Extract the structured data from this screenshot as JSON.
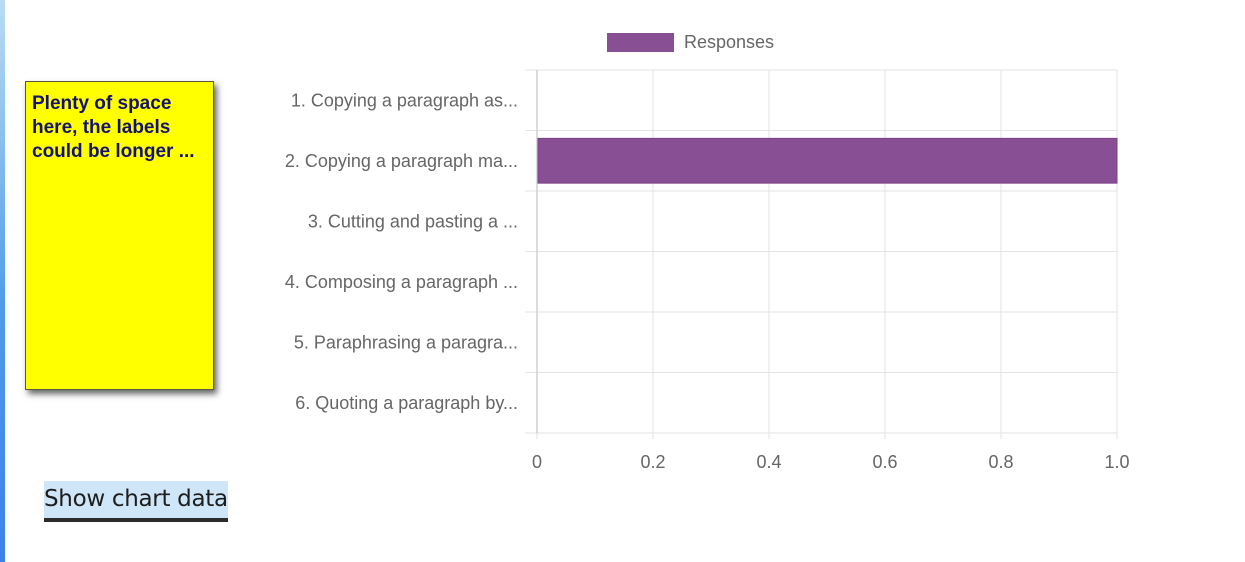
{
  "note": {
    "text": "Plenty of space here, the labels could be longer ..."
  },
  "show_data_button": {
    "label": "Show chart data"
  },
  "chart_data": {
    "type": "bar",
    "orientation": "horizontal",
    "categories": [
      "1. Copying a paragraph as...",
      "2. Copying a paragraph ma...",
      "3. Cutting and pasting a ...",
      "4. Composing a paragraph ...",
      "5. Paraphrasing a paragra...",
      "6. Quoting a paragraph by..."
    ],
    "series": [
      {
        "name": "Responses",
        "values": [
          0,
          1,
          0,
          0,
          0,
          0
        ],
        "color": "#884f94"
      }
    ],
    "xlim": [
      0,
      1
    ],
    "x_ticks": [
      0,
      0.2,
      0.4,
      0.6,
      0.8,
      1.0
    ],
    "x_tick_labels": [
      "0",
      "0.2",
      "0.4",
      "0.6",
      "0.8",
      "1.0"
    ],
    "grid": true,
    "legend": "top"
  }
}
